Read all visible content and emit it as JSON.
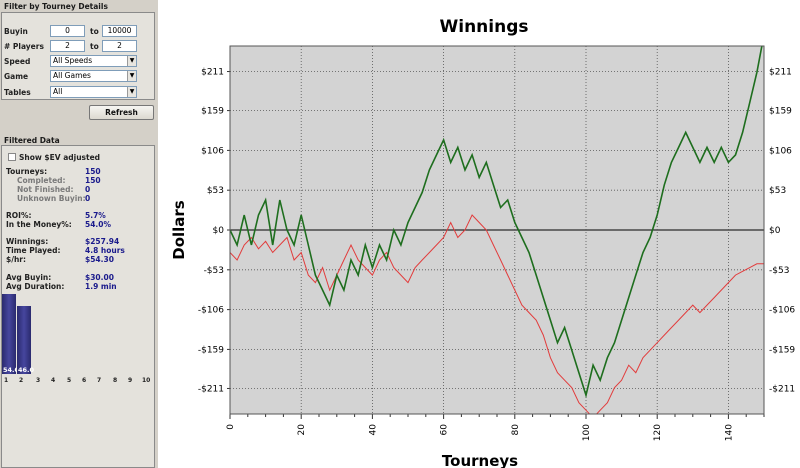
{
  "filter": {
    "title": "Filter by Tourney Details",
    "buyin": {
      "label": "Buyin",
      "from": "0",
      "to_label": "to",
      "to": "10000"
    },
    "players": {
      "label": "# Players",
      "from": "2",
      "to_label": "to",
      "to": "2"
    },
    "speed": {
      "label": "Speed",
      "value": "All Speeds"
    },
    "game": {
      "label": "Game",
      "value": "All Games"
    },
    "tables": {
      "label": "Tables",
      "value": "All"
    },
    "refresh": "Refresh"
  },
  "filtered": {
    "title": "Filtered Data",
    "show_sev": "Show $EV adjusted",
    "tourneys": {
      "label": "Tourneys:",
      "value": "150"
    },
    "completed": {
      "label": "Completed:",
      "value": "150"
    },
    "not_finished": {
      "label": "Not Finished:",
      "value": "0"
    },
    "unknown_buyin": {
      "label": "Unknown Buyin:",
      "value": "0"
    },
    "roi": {
      "label": "ROI%:",
      "value": "5.7%"
    },
    "itm": {
      "label": "In the Money%:",
      "value": "54.0%"
    },
    "winnings": {
      "label": "Winnings:",
      "value": "$257.94"
    },
    "time_played": {
      "label": "Time Played:",
      "value": "4.8 hours"
    },
    "per_hr": {
      "label": "$/hr:",
      "value": "$54.30"
    },
    "avg_buyin": {
      "label": "Avg Buyin:",
      "value": "$30.00"
    },
    "avg_duration": {
      "label": "Avg Duration:",
      "value": "1.9 min"
    }
  },
  "histogram": {
    "bars": [
      {
        "label": "54.0",
        "value": 54.0
      },
      {
        "label": "46.0",
        "value": 46.0
      }
    ],
    "x_labels": [
      "1",
      "2",
      "3",
      "4",
      "5",
      "6",
      "7",
      "8",
      "9",
      "10"
    ]
  },
  "colors": {
    "winnings": "#1e6e1e",
    "ev": "#e23c3c",
    "zero": "#000000",
    "bar": "#34348a"
  },
  "chart_data": {
    "type": "line",
    "title": "Winnings",
    "xlabel": "Tourneys",
    "ylabel": "Dollars",
    "xlim": [
      0,
      150
    ],
    "ylim": [
      -245,
      245
    ],
    "x_ticks": [
      0,
      20,
      40,
      60,
      80,
      100,
      120,
      140
    ],
    "y_ticks": [
      211,
      159,
      106,
      53,
      0,
      -53,
      -106,
      -159,
      -211
    ],
    "y_tick_labels": [
      "$211",
      "$159",
      "$106",
      "$53",
      "$0",
      "-$53",
      "-$106",
      "-$159",
      "-$211"
    ],
    "grid": true,
    "series": [
      {
        "color": "#1e6e1e",
        "points": [
          [
            0,
            0
          ],
          [
            2,
            -20
          ],
          [
            4,
            20
          ],
          [
            6,
            -20
          ],
          [
            8,
            20
          ],
          [
            10,
            40
          ],
          [
            12,
            -20
          ],
          [
            14,
            40
          ],
          [
            16,
            0
          ],
          [
            18,
            -20
          ],
          [
            20,
            20
          ],
          [
            22,
            -20
          ],
          [
            24,
            -60
          ],
          [
            26,
            -80
          ],
          [
            28,
            -100
          ],
          [
            30,
            -60
          ],
          [
            32,
            -80
          ],
          [
            34,
            -40
          ],
          [
            36,
            -60
          ],
          [
            38,
            -20
          ],
          [
            40,
            -50
          ],
          [
            42,
            -20
          ],
          [
            44,
            -40
          ],
          [
            46,
            0
          ],
          [
            48,
            -20
          ],
          [
            50,
            10
          ],
          [
            52,
            30
          ],
          [
            54,
            50
          ],
          [
            56,
            80
          ],
          [
            58,
            100
          ],
          [
            60,
            120
          ],
          [
            62,
            90
          ],
          [
            64,
            110
          ],
          [
            66,
            80
          ],
          [
            68,
            100
          ],
          [
            70,
            70
          ],
          [
            72,
            90
          ],
          [
            74,
            60
          ],
          [
            76,
            30
          ],
          [
            78,
            40
          ],
          [
            80,
            10
          ],
          [
            82,
            -10
          ],
          [
            84,
            -30
          ],
          [
            86,
            -60
          ],
          [
            88,
            -90
          ],
          [
            90,
            -120
          ],
          [
            92,
            -150
          ],
          [
            94,
            -130
          ],
          [
            96,
            -160
          ],
          [
            98,
            -190
          ],
          [
            100,
            -220
          ],
          [
            102,
            -180
          ],
          [
            104,
            -200
          ],
          [
            106,
            -170
          ],
          [
            108,
            -150
          ],
          [
            110,
            -120
          ],
          [
            112,
            -90
          ],
          [
            114,
            -60
          ],
          [
            116,
            -30
          ],
          [
            118,
            -10
          ],
          [
            120,
            20
          ],
          [
            122,
            60
          ],
          [
            124,
            90
          ],
          [
            126,
            110
          ],
          [
            128,
            130
          ],
          [
            130,
            110
          ],
          [
            132,
            90
          ],
          [
            134,
            110
          ],
          [
            136,
            90
          ],
          [
            138,
            110
          ],
          [
            140,
            90
          ],
          [
            142,
            100
          ],
          [
            144,
            130
          ],
          [
            146,
            170
          ],
          [
            148,
            210
          ],
          [
            150,
            260
          ]
        ]
      },
      {
        "color": "#e23c3c",
        "points": [
          [
            0,
            -30
          ],
          [
            2,
            -40
          ],
          [
            4,
            -20
          ],
          [
            6,
            -10
          ],
          [
            8,
            -25
          ],
          [
            10,
            -15
          ],
          [
            12,
            -30
          ],
          [
            14,
            -20
          ],
          [
            16,
            -10
          ],
          [
            18,
            -40
          ],
          [
            20,
            -30
          ],
          [
            22,
            -60
          ],
          [
            24,
            -70
          ],
          [
            26,
            -50
          ],
          [
            28,
            -80
          ],
          [
            30,
            -60
          ],
          [
            32,
            -40
          ],
          [
            34,
            -20
          ],
          [
            36,
            -40
          ],
          [
            38,
            -50
          ],
          [
            40,
            -60
          ],
          [
            42,
            -40
          ],
          [
            44,
            -30
          ],
          [
            46,
            -50
          ],
          [
            48,
            -60
          ],
          [
            50,
            -70
          ],
          [
            52,
            -50
          ],
          [
            54,
            -40
          ],
          [
            56,
            -30
          ],
          [
            58,
            -20
          ],
          [
            60,
            -10
          ],
          [
            62,
            10
          ],
          [
            64,
            -10
          ],
          [
            66,
            0
          ],
          [
            68,
            20
          ],
          [
            70,
            10
          ],
          [
            72,
            0
          ],
          [
            74,
            -20
          ],
          [
            76,
            -40
          ],
          [
            78,
            -60
          ],
          [
            80,
            -80
          ],
          [
            82,
            -100
          ],
          [
            84,
            -110
          ],
          [
            86,
            -120
          ],
          [
            88,
            -140
          ],
          [
            90,
            -170
          ],
          [
            92,
            -190
          ],
          [
            94,
            -200
          ],
          [
            96,
            -210
          ],
          [
            98,
            -230
          ],
          [
            100,
            -240
          ],
          [
            102,
            -250
          ],
          [
            104,
            -240
          ],
          [
            106,
            -230
          ],
          [
            108,
            -210
          ],
          [
            110,
            -200
          ],
          [
            112,
            -180
          ],
          [
            114,
            -190
          ],
          [
            116,
            -170
          ],
          [
            118,
            -160
          ],
          [
            120,
            -150
          ],
          [
            122,
            -140
          ],
          [
            124,
            -130
          ],
          [
            126,
            -120
          ],
          [
            128,
            -110
          ],
          [
            130,
            -100
          ],
          [
            132,
            -110
          ],
          [
            134,
            -100
          ],
          [
            136,
            -90
          ],
          [
            138,
            -80
          ],
          [
            140,
            -70
          ],
          [
            142,
            -60
          ],
          [
            144,
            -55
          ],
          [
            146,
            -50
          ],
          [
            148,
            -45
          ],
          [
            150,
            -45
          ]
        ]
      }
    ]
  }
}
